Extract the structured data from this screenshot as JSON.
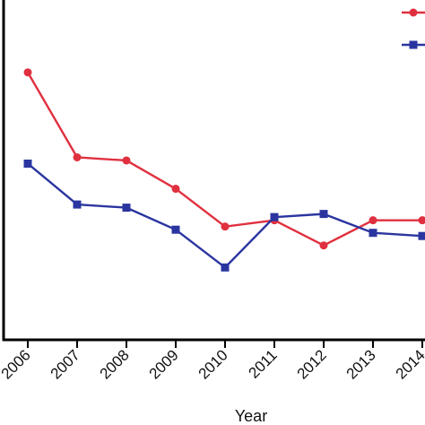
{
  "chart_data": {
    "type": "line",
    "title": "",
    "xlabel": "Year",
    "ylabel": "",
    "x": [
      "2006",
      "2007",
      "2008",
      "2009",
      "2010",
      "2011",
      "2012",
      "2013",
      "2014"
    ],
    "series": [
      {
        "color": "#e0303f",
        "marker": "circle",
        "values": [
          0.77,
          0.5,
          0.49,
          0.4,
          0.28,
          0.3,
          0.22,
          0.3,
          0.3
        ]
      },
      {
        "color": "#2b35a0",
        "marker": "square",
        "values": [
          0.48,
          0.35,
          0.34,
          0.27,
          0.15,
          0.31,
          0.32,
          0.26,
          0.25
        ]
      }
    ],
    "ylim": [
      -0.08,
      1.0
    ],
    "grid": false,
    "legend_position": "top-right"
  }
}
